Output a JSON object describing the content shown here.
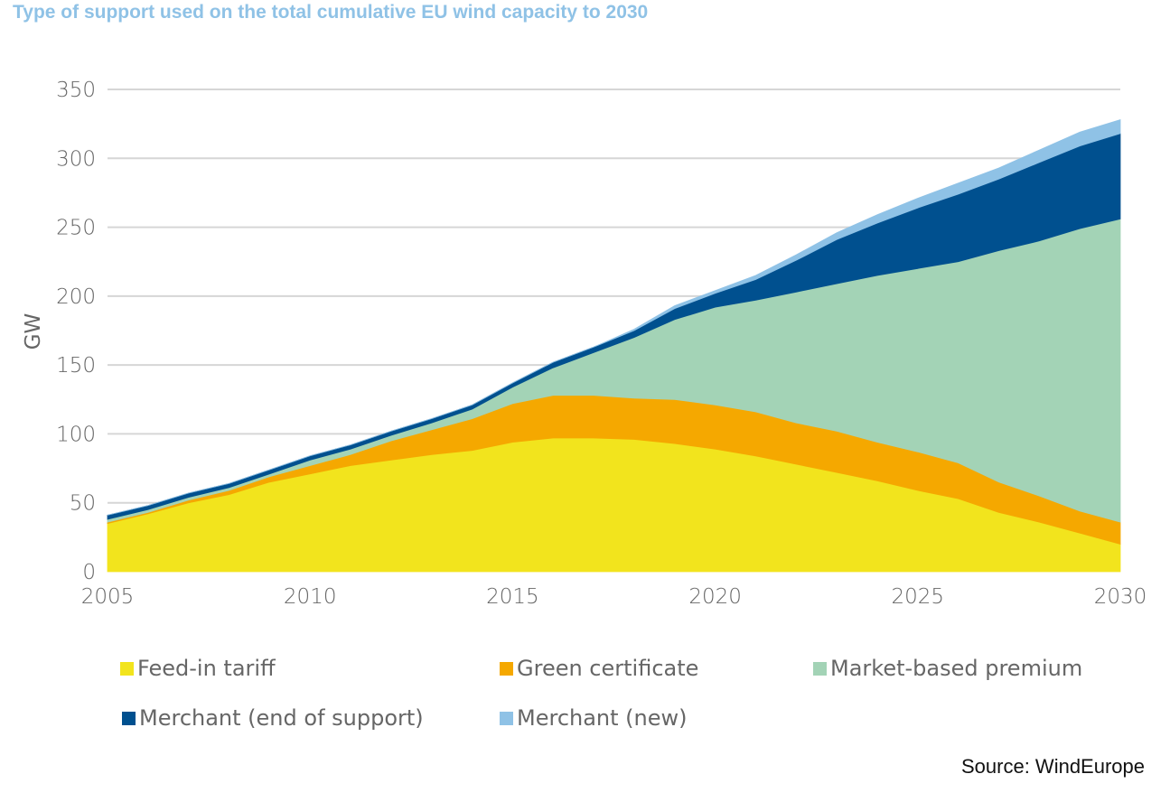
{
  "chart_data": {
    "type": "area",
    "title": "Type of support used on the total cumulative EU wind capacity to 2030",
    "ylabel": "GW",
    "xlabel": "",
    "x": [
      2005,
      2006,
      2007,
      2008,
      2009,
      2010,
      2011,
      2012,
      2013,
      2014,
      2015,
      2016,
      2017,
      2018,
      2019,
      2020,
      2021,
      2022,
      2023,
      2024,
      2025,
      2026,
      2027,
      2028,
      2029,
      2030
    ],
    "xticks": [
      2005,
      2010,
      2015,
      2020,
      2025,
      2030
    ],
    "yticks": [
      0,
      50,
      100,
      150,
      200,
      250,
      300,
      350
    ],
    "xlim": [
      2005,
      2030
    ],
    "ylim": [
      0,
      350
    ],
    "grid": "horizontal",
    "legend_position": "bottom",
    "stacked": true,
    "series": [
      {
        "name": "Feed-in tariff",
        "color": "#f2e41d",
        "values": [
          35,
          42,
          50,
          56,
          65,
          71,
          77,
          81,
          85,
          88,
          94,
          97,
          97,
          96,
          93,
          89,
          84,
          78,
          72,
          66,
          59,
          53,
          43,
          36,
          28,
          20
        ]
      },
      {
        "name": "Green certificate",
        "color": "#f5a800",
        "values": [
          1,
          1,
          2,
          3,
          4,
          6,
          8,
          14,
          18,
          23,
          28,
          31,
          31,
          30,
          32,
          32,
          32,
          30,
          30,
          28,
          28,
          26,
          22,
          19,
          16,
          16
        ]
      },
      {
        "name": "Market-based premium",
        "color": "#a3d3b6",
        "values": [
          2,
          2,
          2,
          2,
          2,
          4,
          4,
          4,
          5,
          7,
          12,
          20,
          31,
          44,
          58,
          71,
          81,
          95,
          107,
          121,
          133,
          146,
          168,
          185,
          205,
          220
        ]
      },
      {
        "name": "Merchant (end of support)",
        "color": "#00508f",
        "values": [
          3,
          3,
          3,
          3,
          3,
          3,
          3,
          3,
          3,
          3,
          3,
          4,
          4,
          5,
          8,
          10,
          15,
          23,
          32,
          38,
          44,
          49,
          52,
          57,
          60,
          62
        ]
      },
      {
        "name": "Merchant (new)",
        "color": "#8fc2e6",
        "values": [
          0,
          0,
          0,
          0,
          0,
          0,
          0,
          0,
          0,
          0,
          0,
          0,
          0,
          1,
          2,
          2,
          3,
          4,
          5,
          6,
          7,
          8,
          8,
          9,
          10,
          10
        ]
      }
    ],
    "source": "Source: WindEurope"
  }
}
